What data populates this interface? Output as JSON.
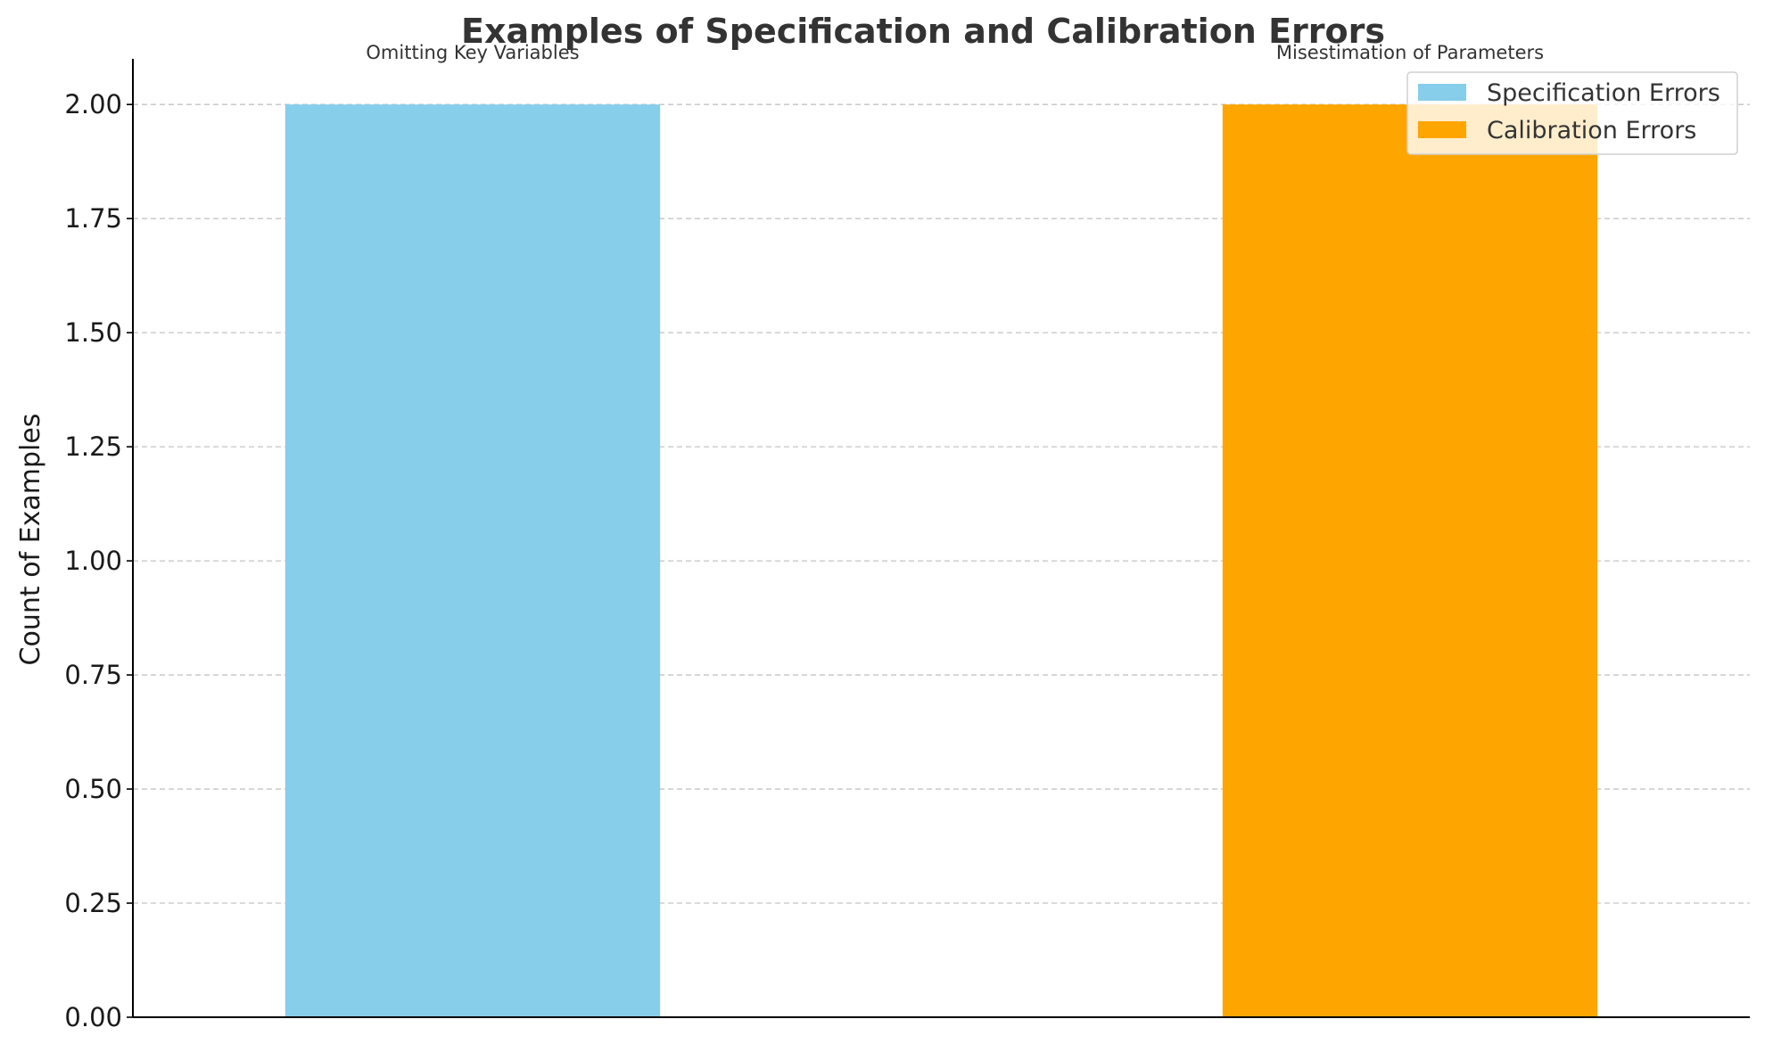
{
  "chart_data": {
    "type": "bar",
    "title": "Examples of Specification and Calibration Errors",
    "xlabel": "",
    "ylabel": "Count of Examples",
    "ylim": [
      0,
      2.1
    ],
    "yticks": [
      "0.00",
      "0.25",
      "0.50",
      "0.75",
      "1.00",
      "1.25",
      "1.50",
      "1.75",
      "2.00"
    ],
    "grid": "y-dashed",
    "legend_position": "top-right",
    "bars": [
      {
        "label": "Omitting Key Variables",
        "value": 2,
        "series": "Specification Errors",
        "color": "#87CEEB"
      },
      {
        "label": "Misestimation of Parameters",
        "value": 2,
        "series": "Calibration Errors",
        "color": "#FFA500"
      }
    ],
    "legend": [
      {
        "name": "Specification Errors",
        "color": "#87CEEB"
      },
      {
        "name": "Calibration Errors",
        "color": "#FFA500"
      }
    ]
  }
}
